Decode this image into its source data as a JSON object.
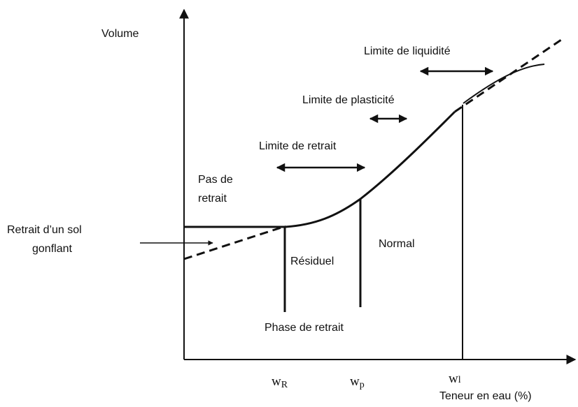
{
  "axes": {
    "y_label": "Volume",
    "x_label": "Teneur en eau (%)"
  },
  "labels": {
    "liquidity": "Limite de liquidité",
    "plasticity": "Limite de plasticité",
    "shrinkage": "Limite de retrait",
    "no_shrink": [
      "Pas de",
      "retrait"
    ],
    "swelling": [
      "Retrait d’un sol",
      "gonflant"
    ],
    "residual": "Résiduel",
    "normal": "Normal",
    "phase": "Phase de retrait"
  },
  "ticks": [
    {
      "base": "w",
      "sub": "R"
    },
    {
      "base": "w",
      "sub": "p"
    },
    {
      "base": "w",
      "sub": "l"
    }
  ]
}
